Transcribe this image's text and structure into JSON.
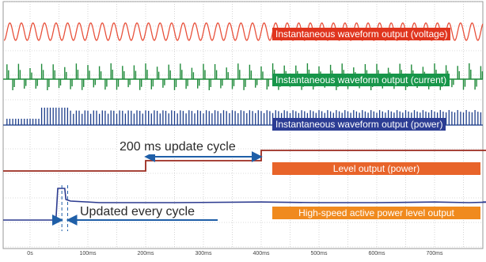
{
  "chart_data": {
    "type": "line",
    "x_unit": "ms",
    "xlim": [
      0,
      800
    ],
    "x_ticks": [
      "0s",
      "100ms",
      "200ms",
      "300ms",
      "400ms",
      "500ms",
      "600ms",
      "700ms"
    ],
    "grid": true,
    "series": [
      {
        "name": "Instantaneous waveform output (voltage)",
        "color": "#e8503a",
        "kind": "sine"
      },
      {
        "name": "Instantaneous waveform output (current)",
        "color": "#1f8a3a",
        "kind": "pulses"
      },
      {
        "name": "Instantaneous waveform output (power)",
        "color": "#1c3d8a",
        "kind": "pulses"
      },
      {
        "name": "Level output (power)",
        "color": "#9b2a1e",
        "kind": "step",
        "points": [
          [
            0,
            0
          ],
          [
            200,
            0
          ],
          [
            200,
            1
          ],
          [
            400,
            1
          ],
          [
            400,
            2
          ],
          [
            800,
            2
          ]
        ]
      },
      {
        "name": "High-speed active power level output",
        "color": "#2b3a8f",
        "kind": "level",
        "points": [
          [
            0,
            0
          ],
          [
            40,
            0
          ],
          [
            45,
            0.05
          ],
          [
            48,
            1.0
          ],
          [
            60,
            1.0
          ],
          [
            62,
            0.65
          ],
          [
            70,
            0.6
          ],
          [
            120,
            0.55
          ],
          [
            250,
            0.55
          ],
          [
            400,
            0.57
          ],
          [
            500,
            0.55
          ],
          [
            600,
            0.55
          ],
          [
            700,
            0.57
          ],
          [
            760,
            0.55
          ],
          [
            800,
            0.57
          ]
        ]
      }
    ],
    "annotations": [
      {
        "text": "200 ms update cycle",
        "x_from": 200,
        "x_to": 400
      },
      {
        "text": "Updated every cycle",
        "x_from": 55,
        "x_to": 65
      }
    ]
  },
  "colors": {
    "label_bg_red": "#e0351e",
    "label_bg_green": "#17964a",
    "label_bg_blue": "#2c3d94",
    "label_bg_level": "#e8642a",
    "label_bg_highspeed": "#f08a1e",
    "grid": "#b8b8b8",
    "arrow": "#1f5fa8"
  }
}
